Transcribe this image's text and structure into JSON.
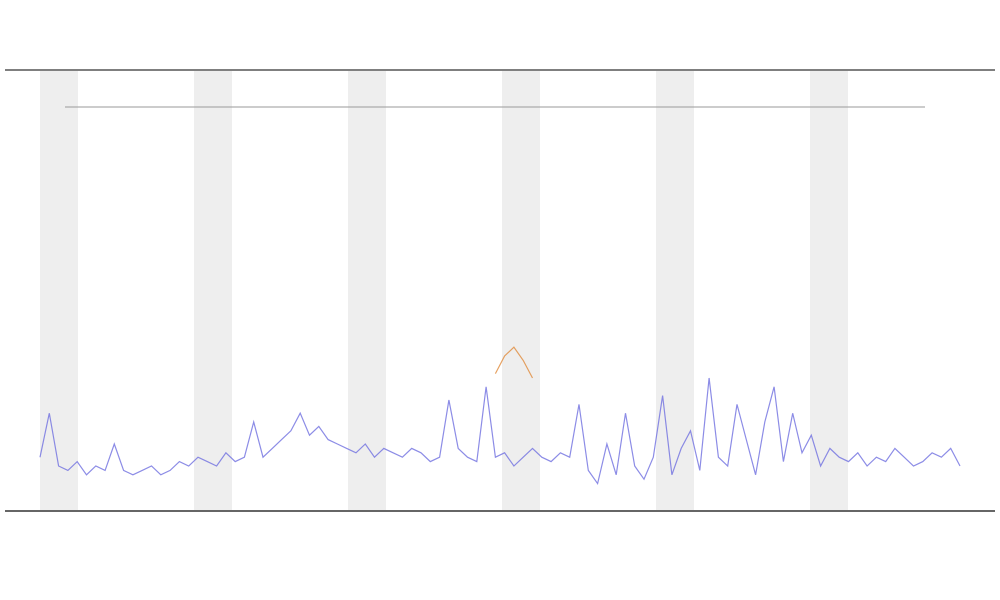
{
  "chart_data": {
    "type": "line",
    "x": [
      0,
      1,
      2,
      3,
      4,
      5,
      6,
      7,
      8,
      9,
      10,
      11,
      12,
      13,
      14,
      15,
      16,
      17,
      18,
      19,
      20,
      21,
      22,
      23,
      24,
      25,
      26,
      27,
      28,
      29,
      30,
      31,
      32,
      33,
      34,
      35,
      36,
      37,
      38,
      39,
      40,
      41,
      42,
      43,
      44,
      45,
      46,
      47,
      48,
      49,
      50,
      51,
      52,
      53,
      54,
      55,
      56,
      57,
      58,
      59,
      60,
      61,
      62,
      63,
      64,
      65,
      66,
      67,
      68,
      69,
      70,
      71,
      72,
      73,
      74,
      75,
      76,
      77,
      78,
      79,
      80,
      81,
      82,
      83,
      84,
      85,
      86,
      87,
      88,
      89,
      90,
      91,
      92,
      93,
      94,
      95,
      96,
      97,
      98,
      99
    ],
    "xlim": [
      0,
      99
    ],
    "ylim": [
      0,
      100
    ],
    "series": [
      {
        "name": null,
        "color": "#6f6fe0",
        "values": [
          12,
          22,
          10,
          9,
          11,
          8,
          10,
          9,
          15,
          9,
          8,
          9,
          10,
          8,
          9,
          11,
          10,
          12,
          11,
          10,
          13,
          11,
          12,
          20,
          12,
          14,
          16,
          18,
          22,
          17,
          19,
          16,
          15,
          14,
          13,
          15,
          12,
          14,
          13,
          12,
          14,
          13,
          11,
          12,
          25,
          14,
          12,
          11,
          28,
          12,
          13,
          10,
          12,
          14,
          12,
          11,
          13,
          12,
          24,
          9,
          6,
          15,
          8,
          22,
          10,
          7,
          12,
          26,
          8,
          14,
          18,
          9,
          30,
          12,
          10,
          24,
          16,
          8,
          20,
          28,
          11,
          22,
          13,
          17,
          10,
          14,
          12,
          11,
          13,
          10,
          12,
          11,
          14,
          12,
          10,
          11,
          13,
          12,
          14,
          10
        ]
      },
      {
        "name": null,
        "color": "#e08a3a",
        "values": [
          null,
          null,
          null,
          null,
          null,
          null,
          null,
          null,
          null,
          null,
          null,
          null,
          null,
          null,
          null,
          null,
          null,
          null,
          null,
          null,
          null,
          null,
          null,
          null,
          null,
          null,
          null,
          null,
          null,
          null,
          null,
          null,
          null,
          null,
          null,
          null,
          null,
          null,
          null,
          null,
          null,
          null,
          null,
          null,
          null,
          null,
          null,
          null,
          null,
          31,
          35,
          37,
          34,
          30,
          null,
          null,
          null,
          null,
          null,
          null,
          null,
          null,
          null,
          null,
          null,
          null,
          null,
          null,
          null,
          null,
          null,
          null,
          null,
          null,
          null,
          null,
          null,
          null,
          null,
          null,
          null,
          null,
          null,
          null,
          null,
          null,
          null,
          null,
          null,
          null,
          null,
          null,
          null,
          null,
          null,
          null,
          null,
          null,
          null,
          null
        ]
      }
    ]
  }
}
